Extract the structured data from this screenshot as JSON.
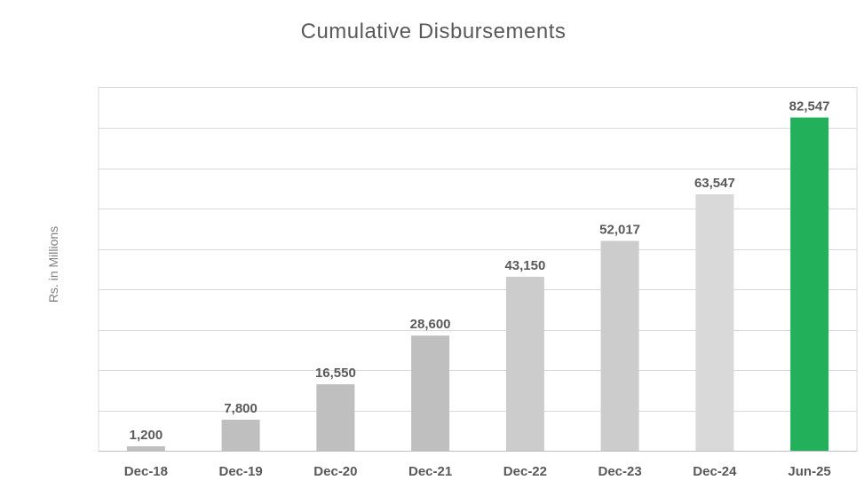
{
  "chart_data": {
    "type": "bar",
    "title": "Cumulative Disbursements",
    "xlabel": "",
    "ylabel": "Rs. in Millions",
    "categories": [
      "Dec-18",
      "Dec-19",
      "Dec-20",
      "Dec-21",
      "Dec-22",
      "Dec-23",
      "Dec-24",
      "Jun-25"
    ],
    "values": [
      1200,
      7800,
      16550,
      28600,
      43150,
      52017,
      63547,
      82547
    ],
    "data_labels": [
      "1,200",
      "7,800",
      "16,550",
      "28,600",
      "43,150",
      "52,017",
      "63,547",
      "82,547"
    ],
    "ylim": [
      0,
      90000
    ],
    "grid": true,
    "legend": "none",
    "colors": {
      "bars": [
        "#bfbfbf",
        "#bfbfbf",
        "#bfbfbf",
        "#bfbfbf",
        "#cccccc",
        "#cccccc",
        "#d9d9d9",
        "#22b05a"
      ],
      "gridline": "#d9d9d9",
      "label_text": "#595959"
    }
  }
}
